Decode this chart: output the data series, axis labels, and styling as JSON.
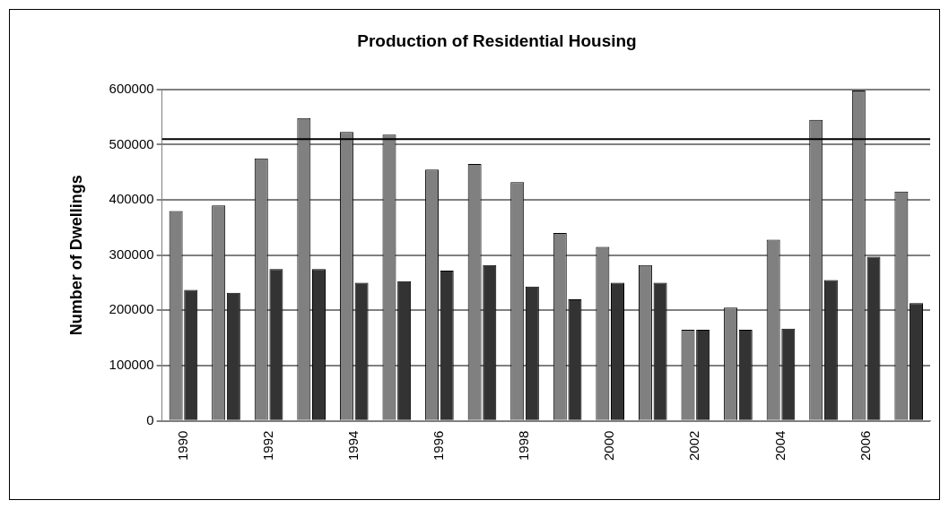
{
  "chart_data": {
    "type": "bar",
    "title": "Production of Residential Housing",
    "ylabel": "Number of Dwellings",
    "categories": [
      "1990",
      null,
      "1992",
      null,
      "1994",
      null,
      "1996",
      null,
      "1998",
      null,
      "2000",
      null,
      "2002",
      null,
      "2004",
      null,
      "2006",
      null
    ],
    "series": [
      {
        "color": "#808080",
        "values": [
          380000,
          390000,
          475000,
          548000,
          523000,
          518000,
          455000,
          465000,
          432000,
          340000,
          315000,
          282000,
          165000,
          205000,
          328000,
          545000,
          598000,
          415000
        ]
      },
      {
        "color": "#333333",
        "values": [
          237000,
          232000,
          275000,
          275000,
          250000,
          253000,
          272000,
          282000,
          243000,
          220000,
          250000,
          250000,
          165000,
          165000,
          167000,
          255000,
          297000,
          213000
        ]
      }
    ],
    "ylim": [
      0,
      600000
    ],
    "yticks": [
      0,
      100000,
      200000,
      300000,
      400000,
      500000,
      600000
    ],
    "grid": "y",
    "ref_lines": [
      {
        "axis": "y",
        "value": 510000,
        "color": "#000000"
      }
    ]
  }
}
